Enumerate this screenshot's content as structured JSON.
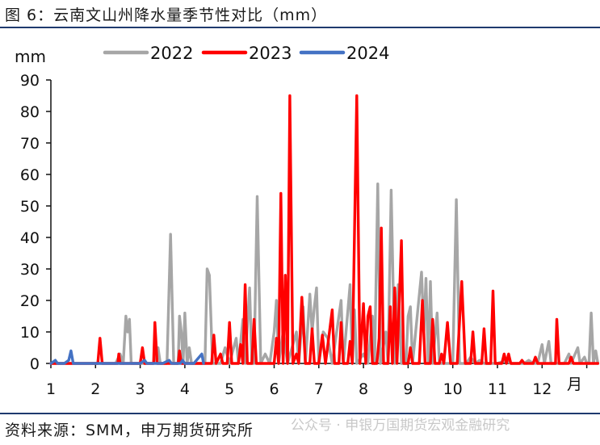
{
  "header": {
    "title": "图 6：云南文山州降水量季节性对比（mm）"
  },
  "footer": {
    "source": "资料来源：SMM，申万期货研究所",
    "watermark": "公众号 · 申银万国期货宏观金融研究"
  },
  "chart_data": {
    "type": "line",
    "title": "",
    "ylabel": "mm",
    "xlabel": "月",
    "xlim": [
      1,
      13
    ],
    "ylim": [
      0,
      90
    ],
    "x_ticks": [
      "1",
      "2",
      "3",
      "4",
      "5",
      "6",
      "7",
      "8",
      "9",
      "10",
      "11",
      "12"
    ],
    "y_ticks": [
      "0",
      "10",
      "20",
      "30",
      "40",
      "50",
      "60",
      "70",
      "80",
      "90"
    ],
    "legend_position": "top",
    "series": [
      {
        "name": "2022",
        "color": "#a6a6a6",
        "points": [
          [
            1.0,
            0
          ],
          [
            2.45,
            0
          ],
          [
            2.55,
            3
          ],
          [
            2.62,
            0
          ],
          [
            2.68,
            15
          ],
          [
            2.72,
            10
          ],
          [
            2.76,
            14
          ],
          [
            2.8,
            0
          ],
          [
            3.0,
            0
          ],
          [
            3.3,
            0
          ],
          [
            3.4,
            5
          ],
          [
            3.45,
            0
          ],
          [
            3.6,
            0
          ],
          [
            3.68,
            41
          ],
          [
            3.75,
            0
          ],
          [
            3.85,
            0
          ],
          [
            3.88,
            15
          ],
          [
            3.92,
            10
          ],
          [
            3.96,
            0
          ],
          [
            4.0,
            16
          ],
          [
            4.05,
            0
          ],
          [
            4.1,
            5
          ],
          [
            4.15,
            0
          ],
          [
            4.45,
            0
          ],
          [
            4.5,
            30
          ],
          [
            4.55,
            28
          ],
          [
            4.62,
            0
          ],
          [
            4.8,
            0
          ],
          [
            4.9,
            5
          ],
          [
            5.0,
            0
          ],
          [
            5.15,
            8
          ],
          [
            5.2,
            0
          ],
          [
            5.3,
            14
          ],
          [
            5.35,
            0
          ],
          [
            5.45,
            24
          ],
          [
            5.5,
            0
          ],
          [
            5.55,
            0
          ],
          [
            5.62,
            53
          ],
          [
            5.7,
            0
          ],
          [
            5.8,
            3
          ],
          [
            5.9,
            0
          ],
          [
            6.0,
            10
          ],
          [
            6.05,
            20
          ],
          [
            6.1,
            0
          ],
          [
            6.2,
            10
          ],
          [
            6.3,
            0
          ],
          [
            6.5,
            10
          ],
          [
            6.55,
            0
          ],
          [
            6.65,
            18
          ],
          [
            6.7,
            0
          ],
          [
            6.8,
            22
          ],
          [
            6.85,
            10
          ],
          [
            6.9,
            18
          ],
          [
            6.95,
            24
          ],
          [
            7.0,
            0
          ],
          [
            7.1,
            10
          ],
          [
            7.2,
            8
          ],
          [
            7.3,
            0
          ],
          [
            7.5,
            20
          ],
          [
            7.55,
            0
          ],
          [
            7.7,
            25
          ],
          [
            7.75,
            0
          ],
          [
            7.8,
            17
          ],
          [
            7.85,
            0
          ],
          [
            8.0,
            3
          ],
          [
            8.1,
            0
          ],
          [
            8.2,
            15
          ],
          [
            8.25,
            0
          ],
          [
            8.32,
            57
          ],
          [
            8.38,
            0
          ],
          [
            8.5,
            10
          ],
          [
            8.55,
            0
          ],
          [
            8.62,
            55
          ],
          [
            8.7,
            0
          ],
          [
            8.78,
            25
          ],
          [
            8.85,
            0
          ],
          [
            8.95,
            0
          ],
          [
            9.0,
            15
          ],
          [
            9.05,
            18
          ],
          [
            9.1,
            0
          ],
          [
            9.3,
            29
          ],
          [
            9.35,
            10
          ],
          [
            9.4,
            27
          ],
          [
            9.45,
            0
          ],
          [
            9.5,
            26
          ],
          [
            9.55,
            0
          ],
          [
            9.65,
            16
          ],
          [
            9.7,
            0
          ],
          [
            10.0,
            0
          ],
          [
            10.08,
            52
          ],
          [
            10.15,
            0
          ],
          [
            10.3,
            0
          ],
          [
            10.4,
            2
          ],
          [
            10.5,
            0
          ],
          [
            10.6,
            1
          ],
          [
            10.7,
            0
          ],
          [
            11.0,
            0
          ],
          [
            11.2,
            1
          ],
          [
            11.3,
            0
          ],
          [
            11.6,
            0
          ],
          [
            11.7,
            1
          ],
          [
            11.8,
            0
          ],
          [
            11.9,
            0
          ],
          [
            12.0,
            6
          ],
          [
            12.05,
            0
          ],
          [
            12.15,
            7
          ],
          [
            12.2,
            0
          ],
          [
            12.5,
            0
          ],
          [
            12.6,
            3
          ],
          [
            12.65,
            0
          ],
          [
            12.8,
            5
          ],
          [
            12.85,
            0
          ],
          [
            12.95,
            2
          ],
          [
            13.0,
            0
          ],
          [
            13.05,
            0
          ],
          [
            13.1,
            16
          ],
          [
            13.15,
            0
          ],
          [
            13.2,
            4
          ],
          [
            13.25,
            0
          ]
        ]
      },
      {
        "name": "2023",
        "color": "#ff0000",
        "points": [
          [
            1.0,
            0
          ],
          [
            2.05,
            0
          ],
          [
            2.1,
            8
          ],
          [
            2.15,
            0
          ],
          [
            2.5,
            0
          ],
          [
            2.52,
            3
          ],
          [
            2.55,
            0
          ],
          [
            3.0,
            0
          ],
          [
            3.05,
            5
          ],
          [
            3.1,
            0
          ],
          [
            3.3,
            0
          ],
          [
            3.33,
            13
          ],
          [
            3.38,
            0
          ],
          [
            3.85,
            0
          ],
          [
            3.88,
            4
          ],
          [
            3.92,
            0
          ],
          [
            4.6,
            0
          ],
          [
            4.65,
            9
          ],
          [
            4.7,
            0
          ],
          [
            4.8,
            3
          ],
          [
            4.85,
            0
          ],
          [
            4.95,
            0
          ],
          [
            5.0,
            13
          ],
          [
            5.05,
            0
          ],
          [
            5.2,
            0
          ],
          [
            5.25,
            6
          ],
          [
            5.3,
            0
          ],
          [
            5.35,
            25
          ],
          [
            5.4,
            0
          ],
          [
            5.5,
            0
          ],
          [
            5.55,
            14
          ],
          [
            5.6,
            0
          ],
          [
            5.9,
            0
          ],
          [
            6.0,
            0
          ],
          [
            6.05,
            8
          ],
          [
            6.1,
            0
          ],
          [
            6.15,
            54
          ],
          [
            6.2,
            0
          ],
          [
            6.25,
            28
          ],
          [
            6.3,
            0
          ],
          [
            6.35,
            85
          ],
          [
            6.42,
            0
          ],
          [
            6.5,
            3
          ],
          [
            6.55,
            0
          ],
          [
            6.62,
            21
          ],
          [
            6.7,
            0
          ],
          [
            6.8,
            0
          ],
          [
            6.85,
            11
          ],
          [
            6.9,
            0
          ],
          [
            7.0,
            0
          ],
          [
            7.08,
            9
          ],
          [
            7.15,
            0
          ],
          [
            7.3,
            17
          ],
          [
            7.35,
            0
          ],
          [
            7.45,
            0
          ],
          [
            7.5,
            13
          ],
          [
            7.55,
            0
          ],
          [
            7.65,
            0
          ],
          [
            7.7,
            7
          ],
          [
            7.75,
            0
          ],
          [
            7.85,
            85
          ],
          [
            7.92,
            0
          ],
          [
            8.0,
            19
          ],
          [
            8.05,
            0
          ],
          [
            8.1,
            15
          ],
          [
            8.15,
            18
          ],
          [
            8.2,
            0
          ],
          [
            8.3,
            0
          ],
          [
            8.35,
            8
          ],
          [
            8.4,
            43
          ],
          [
            8.45,
            0
          ],
          [
            8.55,
            0
          ],
          [
            8.6,
            18
          ],
          [
            8.65,
            0
          ],
          [
            8.7,
            24
          ],
          [
            8.75,
            0
          ],
          [
            8.85,
            39
          ],
          [
            8.9,
            0
          ],
          [
            9.0,
            0
          ],
          [
            9.05,
            5
          ],
          [
            9.1,
            0
          ],
          [
            9.25,
            0
          ],
          [
            9.32,
            20
          ],
          [
            9.38,
            0
          ],
          [
            9.5,
            0
          ],
          [
            9.55,
            14
          ],
          [
            9.6,
            0
          ],
          [
            9.7,
            0
          ],
          [
            9.75,
            3
          ],
          [
            9.8,
            0
          ],
          [
            9.88,
            13
          ],
          [
            9.95,
            0
          ],
          [
            10.1,
            0
          ],
          [
            10.2,
            26
          ],
          [
            10.28,
            0
          ],
          [
            10.4,
            0
          ],
          [
            10.45,
            10
          ],
          [
            10.5,
            0
          ],
          [
            10.65,
            0
          ],
          [
            10.7,
            11
          ],
          [
            10.75,
            0
          ],
          [
            10.85,
            0
          ],
          [
            10.9,
            23
          ],
          [
            10.95,
            0
          ],
          [
            11.1,
            0
          ],
          [
            11.15,
            3
          ],
          [
            11.2,
            0
          ],
          [
            11.25,
            3
          ],
          [
            11.3,
            0
          ],
          [
            11.5,
            0
          ],
          [
            11.55,
            1
          ],
          [
            11.6,
            0
          ],
          [
            11.8,
            0
          ],
          [
            11.85,
            2
          ],
          [
            11.9,
            0
          ],
          [
            12.15,
            0
          ],
          [
            12.3,
            0
          ],
          [
            12.33,
            14
          ],
          [
            12.38,
            0
          ],
          [
            12.6,
            0
          ],
          [
            12.65,
            2
          ],
          [
            12.7,
            0
          ],
          [
            13.25,
            0
          ]
        ]
      },
      {
        "name": "2024",
        "color": "#4472c4",
        "points": [
          [
            1.0,
            0
          ],
          [
            1.1,
            1
          ],
          [
            1.15,
            0
          ],
          [
            1.3,
            0
          ],
          [
            1.4,
            1
          ],
          [
            1.45,
            4
          ],
          [
            1.5,
            0
          ],
          [
            1.7,
            0
          ],
          [
            2.0,
            0
          ],
          [
            2.5,
            0
          ],
          [
            2.8,
            0
          ],
          [
            3.0,
            0
          ],
          [
            3.1,
            1
          ],
          [
            3.15,
            0
          ],
          [
            3.5,
            0
          ],
          [
            3.65,
            1
          ],
          [
            3.7,
            0
          ],
          [
            3.9,
            0
          ],
          [
            3.95,
            1
          ],
          [
            4.0,
            0
          ],
          [
            4.1,
            0
          ],
          [
            4.2,
            0
          ],
          [
            4.38,
            3
          ],
          [
            4.42,
            0
          ]
        ]
      }
    ]
  }
}
